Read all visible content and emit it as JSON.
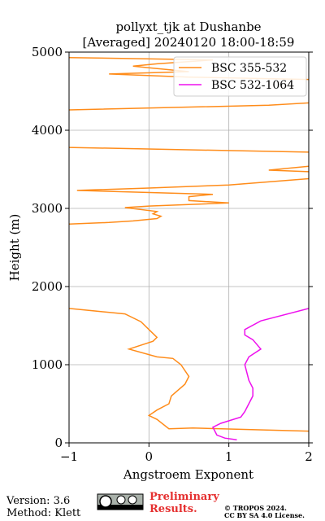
{
  "chart_data": {
    "type": "line",
    "title": [
      "pollyxt_tjk at Dushanbe",
      "[Averaged] 20240120 18:00-18:59"
    ],
    "xlabel": "Angstroem Exponent",
    "ylabel": "Height (m)",
    "xlim": [
      -1,
      2
    ],
    "xticks": [
      {
        "value": -1,
        "label": "−1"
      },
      0,
      1,
      2
    ],
    "ylim": [
      0,
      5000
    ],
    "yticks": [
      0,
      1000,
      2000,
      3000,
      4000,
      5000
    ],
    "grid": true,
    "legend": "upper right",
    "series": [
      {
        "name": "BSC 355-532",
        "color": "#ff8c1a",
        "values": [
          2.0,
          0.55,
          0.25,
          0.1,
          0.0,
          0.1,
          0.25,
          0.28,
          0.45,
          0.5,
          0.4,
          0.3,
          0.1,
          -0.25,
          0.05,
          0.1,
          0.0,
          -0.1,
          -0.3,
          -1.0,
          null,
          -1.0,
          -0.5,
          -0.2,
          0.1,
          0.15,
          0.05,
          0.1,
          -0.3,
          0.0,
          1.0,
          0.5,
          0.5,
          0.8,
          -0.9,
          0.0,
          1.0,
          2.0,
          null,
          2.0,
          1.5,
          2.0,
          null,
          2.0,
          -1.0,
          null,
          -1.0,
          1.5,
          2.0,
          null,
          2.0,
          0.5,
          -0.5,
          0.5,
          0.0,
          -0.2,
          0.1,
          0.8,
          -1.0
        ],
        "heights": [
          150,
          190,
          180,
          300,
          350,
          420,
          500,
          600,
          750,
          850,
          1000,
          1080,
          1100,
          1200,
          1300,
          1350,
          1450,
          1550,
          1650,
          1720,
          null,
          2800,
          2820,
          2840,
          2870,
          2900,
          2930,
          2960,
          3010,
          3030,
          3070,
          3100,
          3150,
          3180,
          3230,
          3260,
          3300,
          3380,
          null,
          3470,
          3490,
          3540,
          null,
          3720,
          3780,
          null,
          4260,
          4320,
          4350,
          null,
          4650,
          4680,
          4720,
          4750,
          4800,
          4820,
          4850,
          4900,
          4930
        ]
      },
      {
        "name": "BSC 532-1064",
        "color": "#ee11ee",
        "values": [
          1.1,
          0.95,
          0.85,
          0.8,
          0.9,
          1.15,
          1.2,
          1.3,
          1.3,
          1.25,
          1.2,
          1.25,
          1.4,
          1.3,
          1.2,
          1.2,
          1.4,
          2.0
        ],
        "heights": [
          40,
          60,
          100,
          200,
          250,
          330,
          400,
          600,
          700,
          800,
          1000,
          1100,
          1200,
          1320,
          1380,
          1450,
          1560,
          1720
        ]
      }
    ]
  },
  "footer": {
    "notes": [
      "Version: 3.6",
      "Method: Klett"
    ],
    "preliminary": [
      "Preliminary",
      "Results."
    ],
    "copyright": [
      "© TROPOS 2024.",
      "CC BY SA 4.0 License."
    ]
  }
}
